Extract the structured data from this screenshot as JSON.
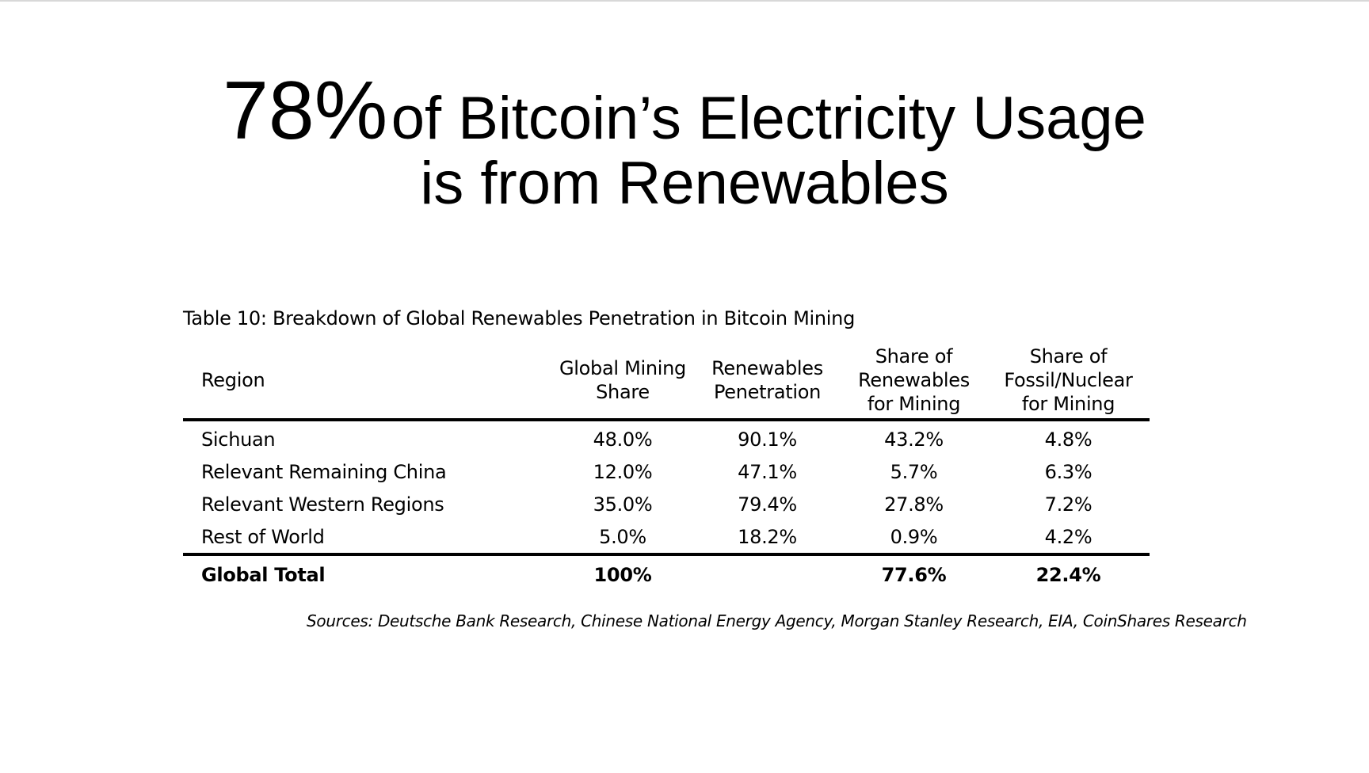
{
  "headline": {
    "percent": "78%",
    "line1_rest": "of Bitcoin’s Electricity Usage",
    "line2": "is from Renewables"
  },
  "table": {
    "caption": "Table 10: Breakdown of Global Renewables Penetration in Bitcoin Mining",
    "headers": [
      [
        "Region"
      ],
      [
        "Global Mining",
        "Share"
      ],
      [
        "Renewables",
        "Penetration"
      ],
      [
        "Share of",
        "Renewables",
        "for Mining"
      ],
      [
        "Share of",
        "Fossil/Nuclear",
        "for Mining"
      ]
    ],
    "rows": [
      [
        "Sichuan",
        "48.0%",
        "90.1%",
        "43.2%",
        "4.8%"
      ],
      [
        "Relevant Remaining China",
        "12.0%",
        "47.1%",
        "5.7%",
        "6.3%"
      ],
      [
        "Relevant Western Regions",
        "35.0%",
        "79.4%",
        "27.8%",
        "7.2%"
      ],
      [
        "Rest of World",
        "5.0%",
        "18.2%",
        "0.9%",
        "4.2%"
      ]
    ],
    "total": [
      "Global Total",
      "100%",
      "",
      "77.6%",
      "22.4%"
    ]
  },
  "sources": "Sources: Deutsche Bank Research, Chinese National Energy Agency, Morgan Stanley Research, EIA, CoinShares Research"
}
